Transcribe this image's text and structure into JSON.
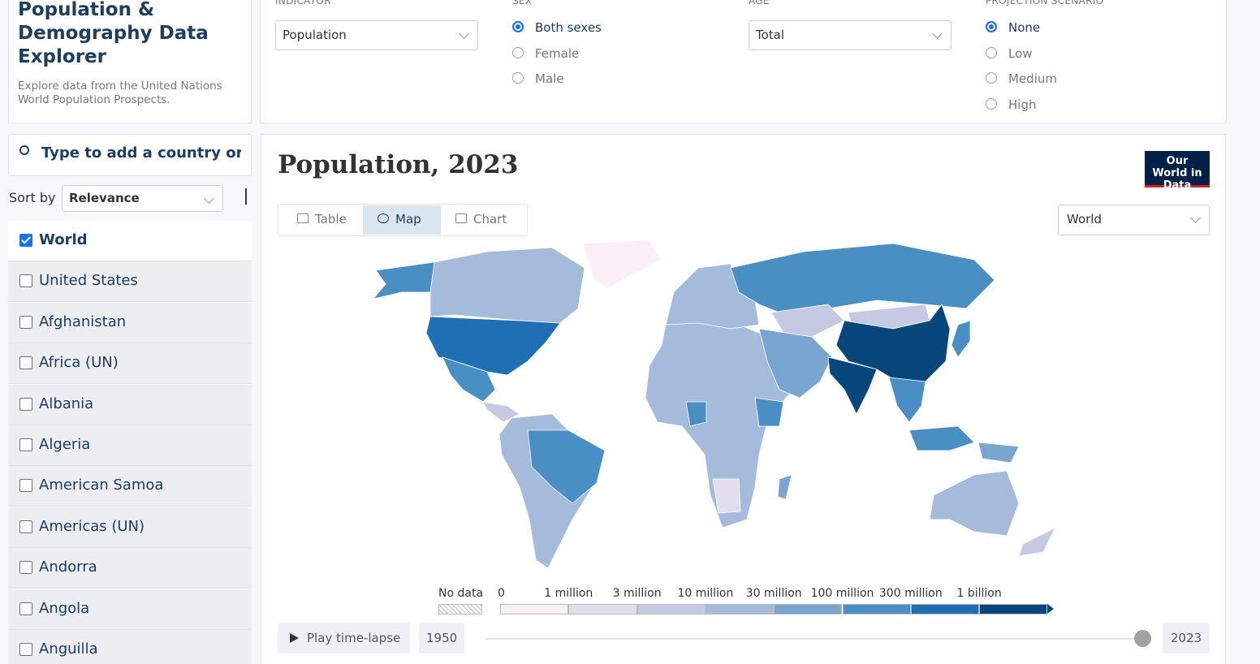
{
  "header": {
    "title": "Population & Demography Data Explorer",
    "subtitle": "Explore data from the United Nations World Population Prospects."
  },
  "controls": [
    {
      "label": "INDICATOR",
      "value": "Population"
    },
    {
      "label": "SEX",
      "options": [
        "Both sexes",
        "Female",
        "Male"
      ],
      "selected": 0
    },
    {
      "label": "AGE",
      "value": "Total"
    },
    {
      "label": "PROJECTION SCENARIO",
      "options": [
        "None",
        "Low",
        "Medium",
        "High"
      ],
      "selected": 0
    }
  ],
  "sidebar": {
    "search_placeholder": "Type to add a country or region",
    "sort_label": "Sort by",
    "sort_value": "Relevance",
    "entities": [
      "World",
      "United States",
      "Afghanistan",
      "Africa (UN)",
      "Albania",
      "Algeria",
      "American Samoa",
      "Americas (UN)",
      "Andorra",
      "Angola",
      "Anguilla"
    ],
    "checked": [
      0
    ]
  },
  "chart": {
    "title": "Population, 2023",
    "logo": "Our World in Data",
    "tabs": [
      "Table",
      "Map",
      "Chart"
    ],
    "active_tab": 1,
    "region": "World",
    "legend": {
      "no_data": "No data",
      "bins": [
        "0",
        "1 million",
        "3 million",
        "10 million",
        "30 million",
        "100 million",
        "300 million",
        "1 billion"
      ],
      "colors": [
        "#fbeff5",
        "#e3deee",
        "#c6c9e2",
        "#a4bbdb",
        "#78a6d0",
        "#4a8fc3",
        "#1e6fb3",
        "#08477b"
      ]
    },
    "timeline": {
      "play": "Play time-lapse",
      "start": "1950",
      "end": "2023"
    }
  }
}
